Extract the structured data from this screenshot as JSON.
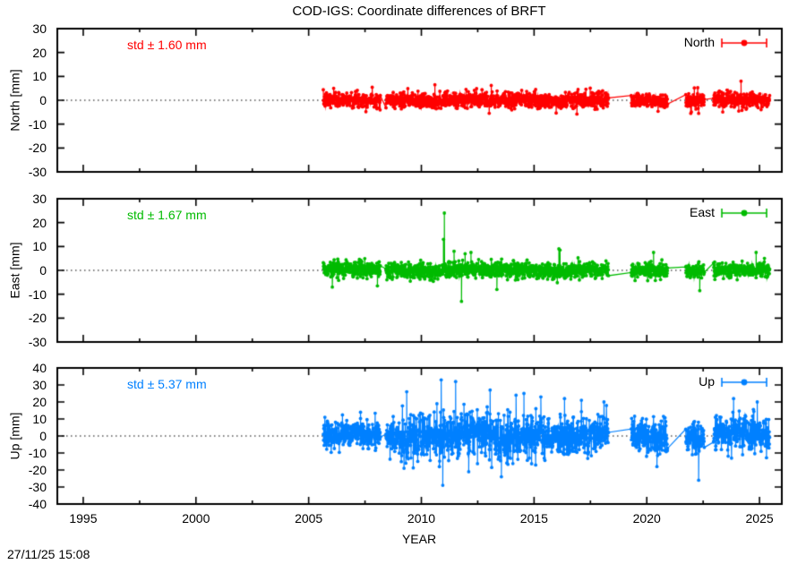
{
  "header": {
    "title": "COD-IGS: Coordinate differences of BRFT",
    "timestamp": "27/11/25 15:08"
  },
  "chart_data": {
    "type": "scatter",
    "title": "COD-IGS: Coordinate differences of BRFT",
    "xlabel": "YEAR",
    "xlim": [
      1993.85,
      2025.99
    ],
    "x_major_ticks": [
      1995,
      2000,
      2005,
      2010,
      2015,
      2020,
      2025
    ],
    "x_minor_ticks": [
      1997.5,
      2002.5,
      2007.5,
      2012.5,
      2017.5,
      2022.5
    ],
    "data_start_year": 2005.65,
    "data_end_year": 2025.45,
    "sample_step_years": 0.01,
    "seed": 7,
    "zero_line": "dotted",
    "grid": "off",
    "legend_position": "top-right-inside",
    "gaps": [
      [
        2008.18,
        2008.42
      ],
      [
        2018.3,
        2019.3
      ],
      [
        2020.92,
        2021.72
      ],
      [
        2022.55,
        2022.95
      ]
    ],
    "panels": [
      {
        "id": "north",
        "legend_label": "North",
        "ylabel": "North [mm]",
        "std_label": "std ± 1.60 mm",
        "std_mm": 1.6,
        "color": "#ff0000",
        "ylim": [
          -30,
          30
        ],
        "ytick_step": 10,
        "sigma_mm": 1.6,
        "clamp_mm": 7,
        "mean_wobble_mm": 0.3,
        "sigma_windows": [],
        "outliers": [
          [
            2010.6,
            6.5
          ],
          [
            2013.1,
            6.2
          ],
          [
            2016.9,
            -5.8
          ],
          [
            2022.3,
            -5.5
          ],
          [
            2024.18,
            8
          ]
        ]
      },
      {
        "id": "east",
        "legend_label": "East",
        "ylabel": "East [mm]",
        "std_label": "std ± 1.67 mm",
        "std_mm": 1.67,
        "color": "#00bb00",
        "ylim": [
          -30,
          30
        ],
        "ytick_step": 10,
        "sigma_mm": 1.67,
        "clamp_mm": 7.5,
        "mean_wobble_mm": 0.3,
        "sigma_windows": [],
        "outliers": [
          [
            2006.05,
            -7
          ],
          [
            2008.05,
            -6.5
          ],
          [
            2010.98,
            13
          ],
          [
            2011.02,
            24
          ],
          [
            2011.45,
            8
          ],
          [
            2011.78,
            -13
          ],
          [
            2012.2,
            7.5
          ],
          [
            2013.35,
            -8
          ],
          [
            2016.1,
            9
          ],
          [
            2016.15,
            8.5
          ],
          [
            2020.3,
            7.5
          ],
          [
            2022.35,
            -8.5
          ],
          [
            2024.85,
            7.5
          ]
        ]
      },
      {
        "id": "up",
        "legend_label": "Up",
        "ylabel": "Up [mm]",
        "std_label": "std ± 5.37 mm",
        "std_mm": 5.37,
        "color": "#0080ff",
        "ylim": [
          -40,
          40
        ],
        "ytick_step": 10,
        "sigma_mm": 5.37,
        "clamp_mm": 19,
        "mean_wobble_mm": 1.2,
        "sigma_windows": [
          [
            2005.6,
            2008.6,
            0.75
          ],
          [
            2009.0,
            2015.5,
            1.3
          ]
        ],
        "outliers": [
          [
            2007.3,
            14
          ],
          [
            2009.35,
            26
          ],
          [
            2010.88,
            33
          ],
          [
            2010.95,
            -29
          ],
          [
            2011.52,
            32
          ],
          [
            2012.1,
            -21
          ],
          [
            2013.05,
            27
          ],
          [
            2013.55,
            -24
          ],
          [
            2014.2,
            24
          ],
          [
            2014.55,
            25
          ],
          [
            2015.3,
            23
          ],
          [
            2016.35,
            22
          ],
          [
            2017.1,
            21
          ],
          [
            2018.1,
            20
          ],
          [
            2020.45,
            -18
          ],
          [
            2022.3,
            -26
          ],
          [
            2023.85,
            22
          ],
          [
            2024.9,
            20
          ]
        ]
      }
    ]
  }
}
